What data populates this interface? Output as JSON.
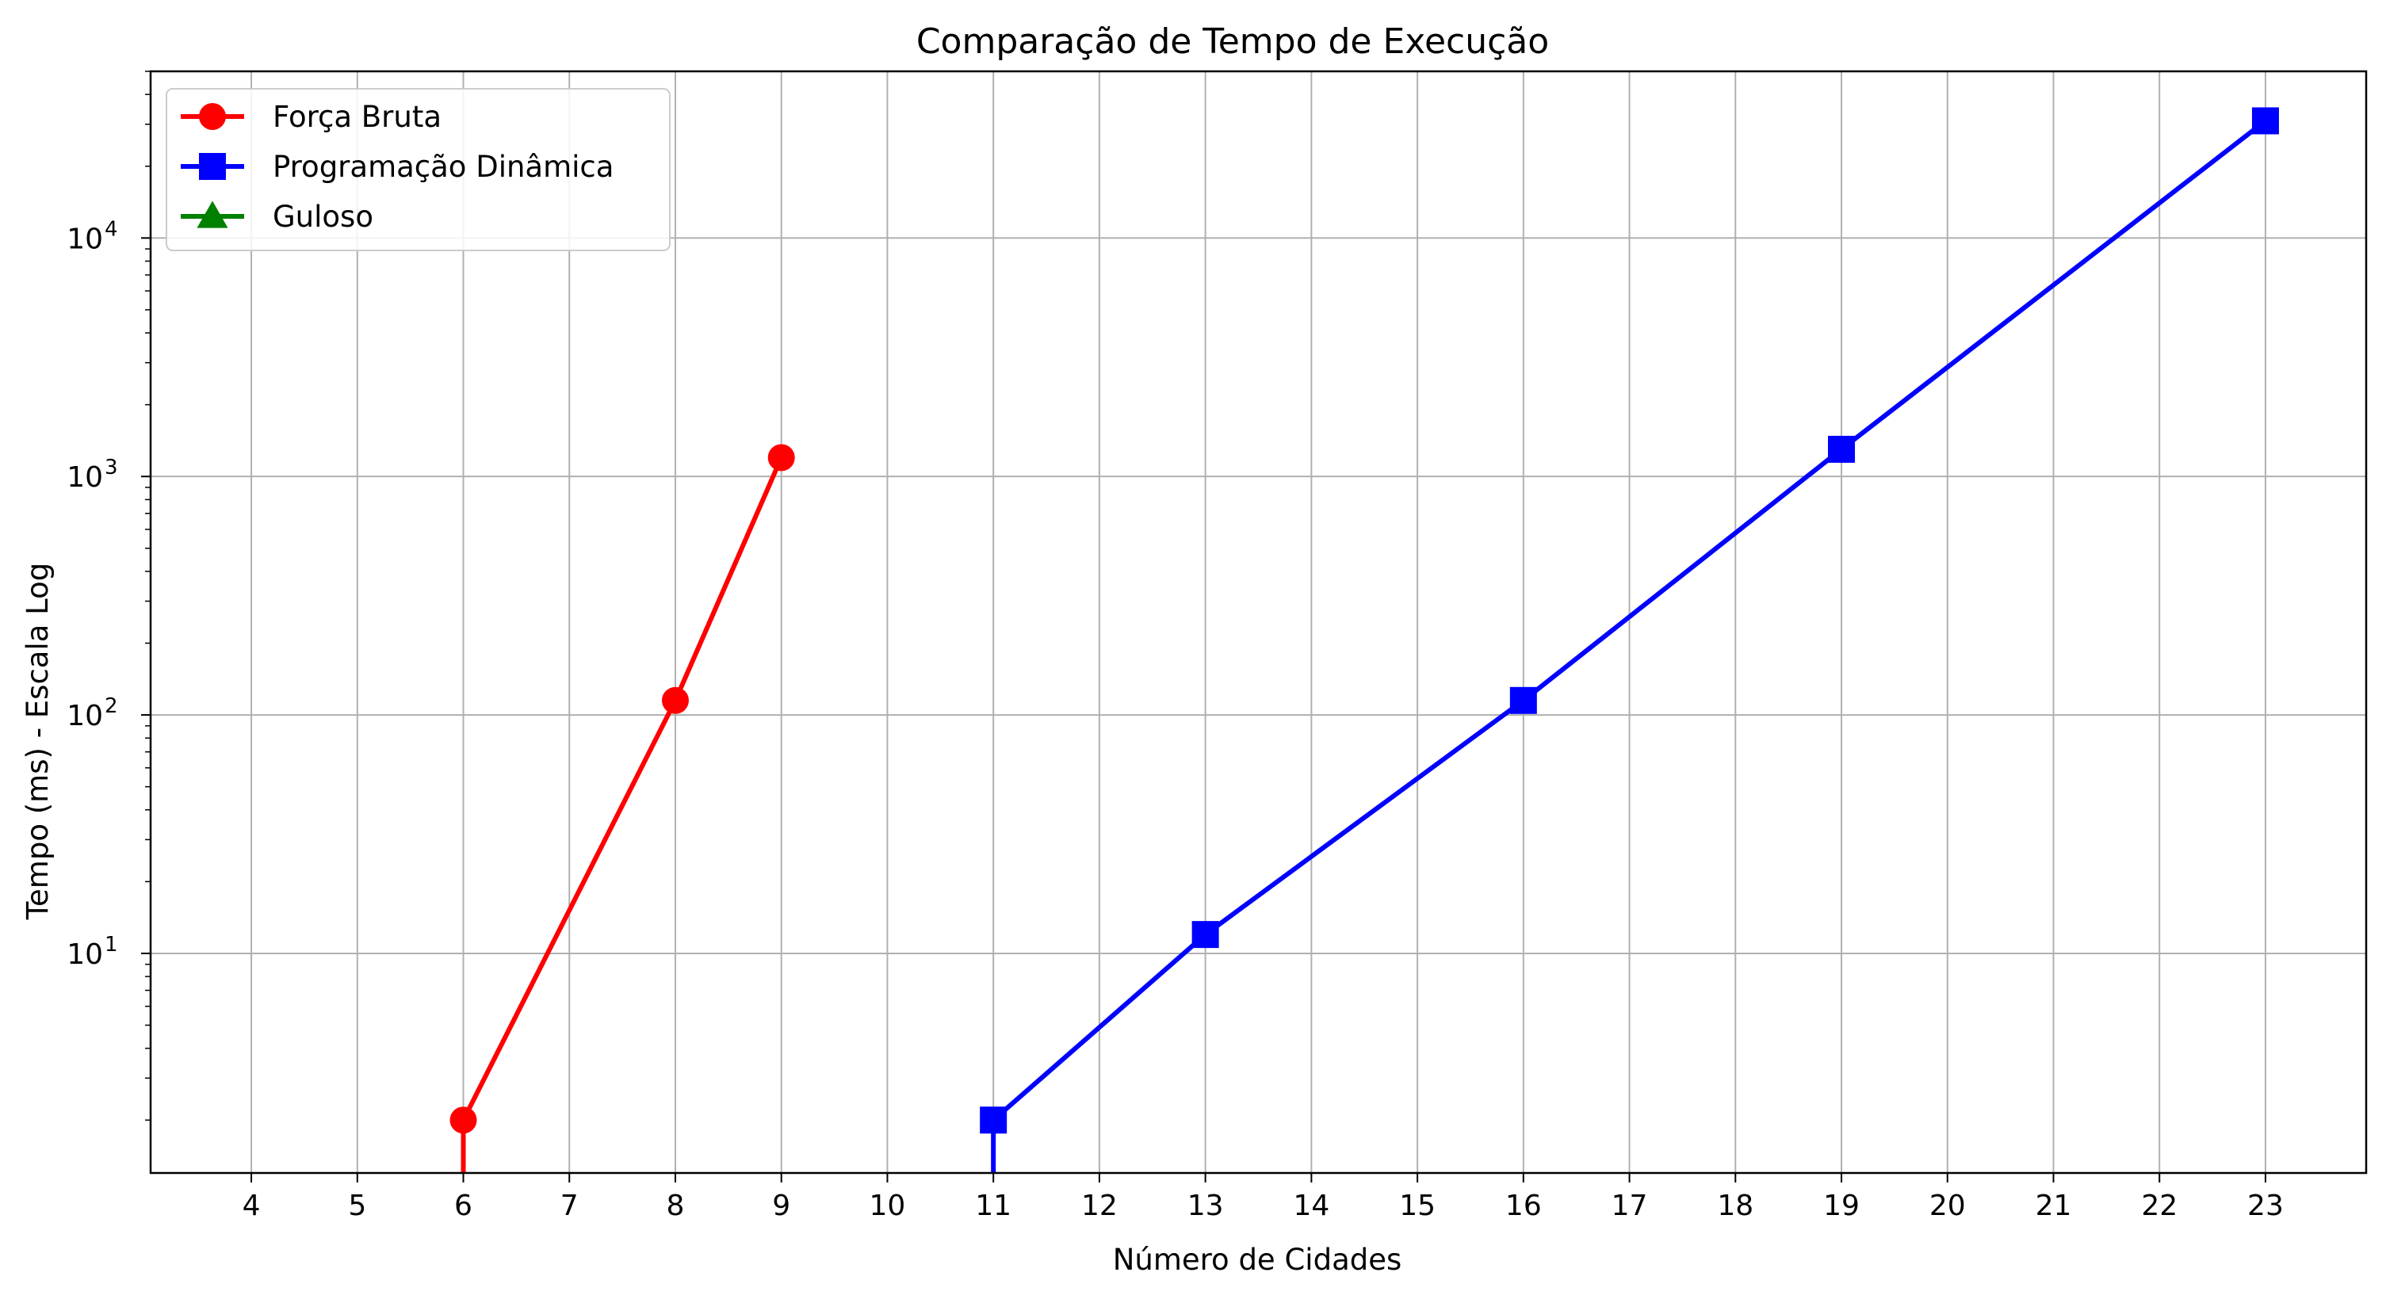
{
  "chart_data": {
    "type": "line",
    "title": "Comparação de Tempo de Execução",
    "xlabel": "Número de Cidades",
    "ylabel": "Tempo (ms) - Escala Log",
    "yscale": "log",
    "grid": true,
    "legend_position": "top-left",
    "xlim": [
      3.05,
      23.95
    ],
    "ylim": [
      1.2,
      50000
    ],
    "x_ticks": [
      4,
      5,
      6,
      7,
      8,
      9,
      10,
      11,
      12,
      13,
      14,
      15,
      16,
      17,
      18,
      19,
      20,
      21,
      22,
      23
    ],
    "y_ticks": [
      {
        "value": 10,
        "base": "10",
        "exp": "1"
      },
      {
        "value": 100,
        "base": "10",
        "exp": "2"
      },
      {
        "value": 1000,
        "base": "10",
        "exp": "3"
      },
      {
        "value": 10000,
        "base": "10",
        "exp": "4"
      }
    ],
    "series": [
      {
        "name": "Força Bruta",
        "color": "#ff0000",
        "marker": "circle",
        "x": [
          6,
          8,
          9
        ],
        "y": [
          2,
          115,
          1200
        ],
        "drop_to_axis_at": 6
      },
      {
        "name": "Programação Dinâmica",
        "color": "#0000ff",
        "marker": "square",
        "x": [
          11,
          13,
          16,
          19,
          23
        ],
        "y": [
          2,
          12,
          115,
          1300,
          31000
        ],
        "drop_to_axis_at": 11
      },
      {
        "name": "Guloso",
        "color": "#008000",
        "marker": "triangle",
        "x": [],
        "y": []
      }
    ]
  }
}
